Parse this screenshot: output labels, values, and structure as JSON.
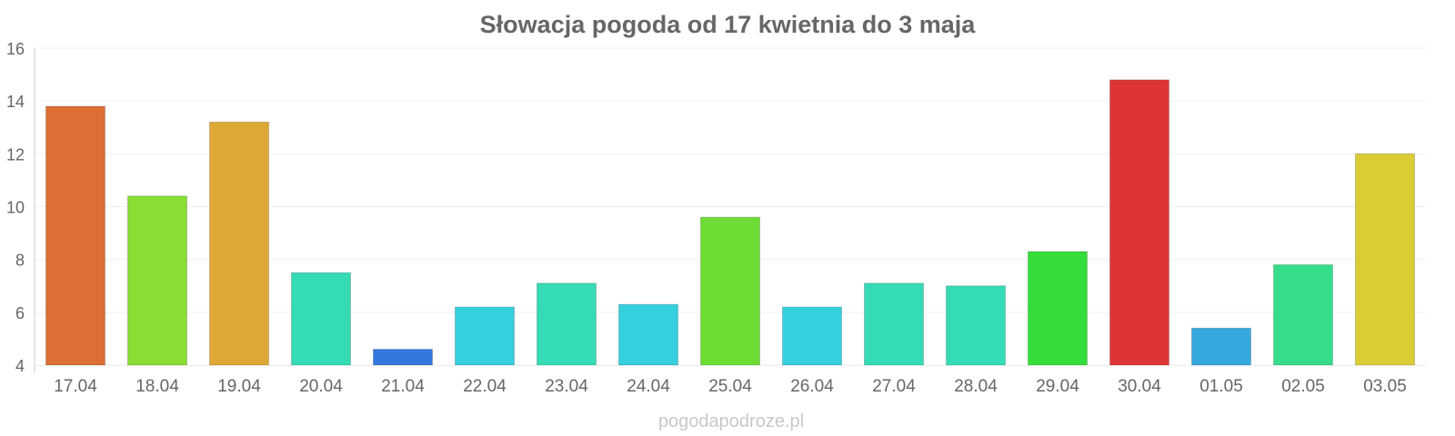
{
  "chart_data": {
    "type": "bar",
    "title": "Słowacja pogoda od 17 kwietnia do 3 maja",
    "xlabel": "",
    "ylabel": "",
    "ylim": [
      4,
      16
    ],
    "yticks": [
      "4",
      "6",
      "8",
      "10",
      "12",
      "14",
      "16"
    ],
    "grid": true,
    "legend": "none",
    "categories": [
      "17.04",
      "18.04",
      "19.04",
      "20.04",
      "21.04",
      "22.04",
      "23.04",
      "24.04",
      "25.04",
      "26.04",
      "27.04",
      "28.04",
      "29.04",
      "30.04",
      "01.05",
      "02.05",
      "03.05"
    ],
    "values": [
      13.8,
      10.4,
      13.2,
      7.5,
      4.6,
      6.2,
      7.1,
      6.3,
      9.6,
      6.2,
      7.1,
      7.0,
      8.3,
      14.8,
      5.4,
      7.8,
      12.0
    ],
    "colors": [
      "#dd6e35",
      "#89dd35",
      "#dda835",
      "#35dbb5",
      "#3578dd",
      "#35cfdd",
      "#35dbb5",
      "#35cfdd",
      "#6ddd35",
      "#35cfdd",
      "#35dbb5",
      "#35dbb5",
      "#35dd3a",
      "#dd3535",
      "#35a8dd",
      "#35dd8a",
      "#dbcc35"
    ]
  },
  "watermark": "pogodapodroze.pl"
}
